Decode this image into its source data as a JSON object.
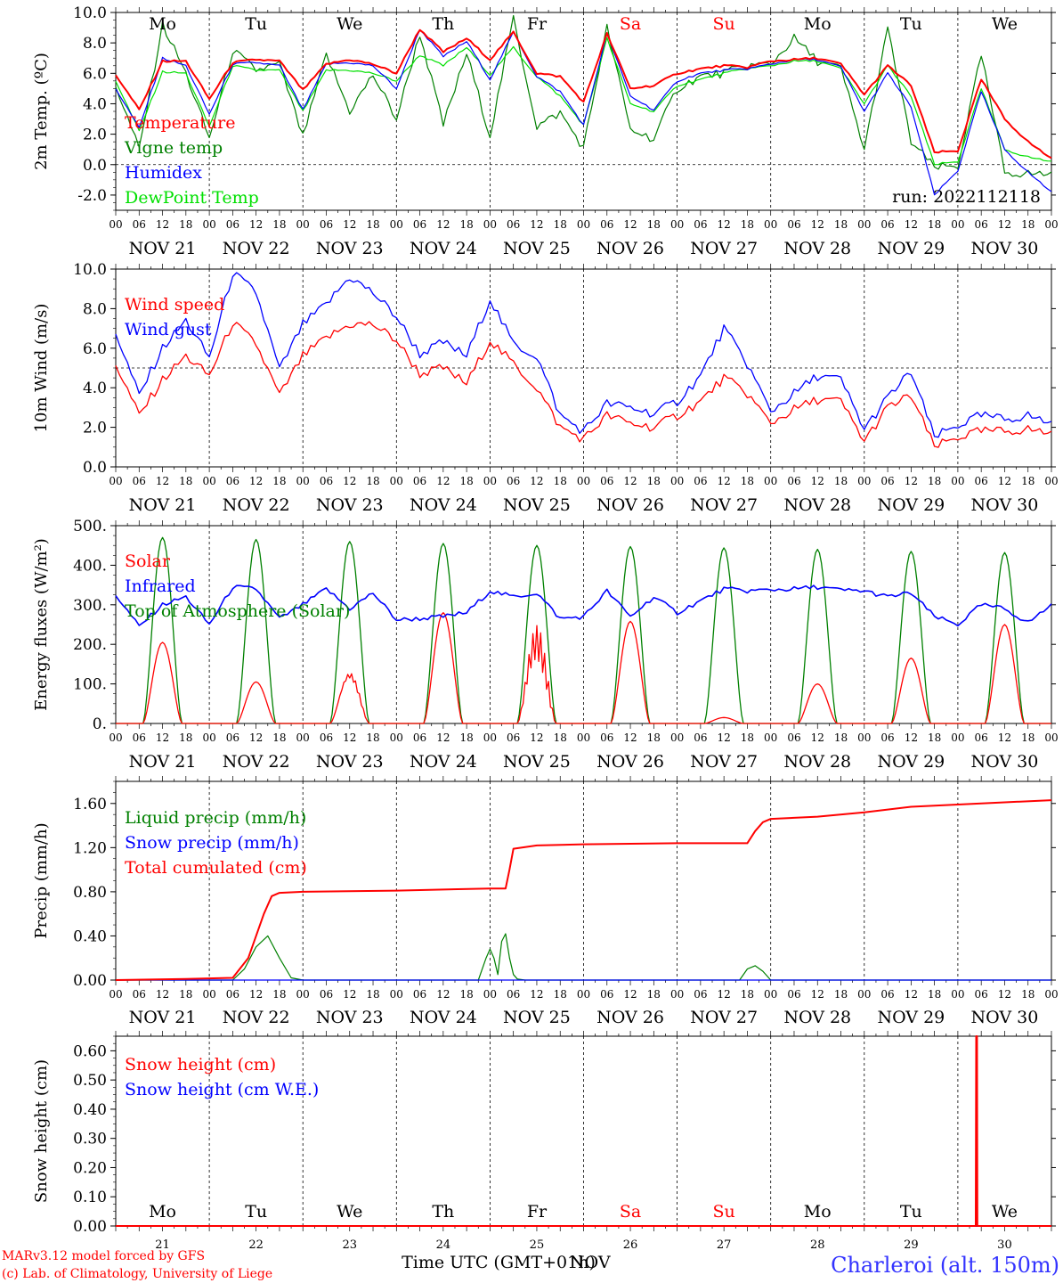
{
  "layout_note": "",
  "chart_data": [
    {
      "type": "line",
      "ylabel": "2m Temp. (ºC)",
      "ylim": [
        -3.0,
        10.0
      ],
      "yticks": [
        "-2.0",
        "0.0",
        "2.0",
        "4.0",
        "6.0",
        "8.0",
        "10.0"
      ],
      "ytick_values": [
        -2,
        0,
        2,
        4,
        6,
        8,
        10
      ],
      "ref_line": 0,
      "day_labels": [
        "Mo",
        "Tu",
        "We",
        "Th",
        "Fr",
        "Sa",
        "Su",
        "Mo",
        "Tu",
        "We"
      ],
      "date_labels": [
        "NOV 21",
        "NOV 22",
        "NOV 23",
        "NOV 24",
        "NOV 25",
        "NOV 26",
        "NOV 27",
        "NOV 28",
        "NOV 29",
        "NOV 30"
      ],
      "run_label": "run: 2022112118",
      "x_hours": [
        0,
        6,
        12,
        18,
        24,
        30,
        36,
        42,
        48,
        54,
        60,
        66,
        72,
        78,
        84,
        90,
        96,
        102,
        108,
        114,
        120,
        126,
        132,
        138,
        144,
        150,
        156,
        162,
        168,
        174,
        180,
        186,
        192,
        198,
        204,
        210,
        216,
        222,
        228,
        234,
        240
      ],
      "series": [
        {
          "name": "Temperature",
          "color": "#ff0000",
          "values": [
            5.9,
            3.6,
            6.8,
            6.8,
            4.3,
            6.7,
            6.9,
            6.8,
            4.9,
            6.6,
            6.9,
            6.6,
            6.0,
            8.9,
            7.4,
            8.3,
            6.9,
            8.7,
            6.0,
            5.8,
            4.1,
            8.6,
            5.0,
            5.2,
            6.0,
            6.3,
            6.5,
            6.4,
            6.8,
            6.9,
            7.0,
            6.6,
            4.6,
            6.5,
            5.2,
            0.8,
            0.9,
            5.6,
            3.0,
            1.5,
            0.4
          ]
        },
        {
          "name": "Vigne temp",
          "color": "#008000",
          "values": [
            5.2,
            1.0,
            9.2,
            6.0,
            1.7,
            7.5,
            6.2,
            6.6,
            1.8,
            7.2,
            3.5,
            5.9,
            3.0,
            8.6,
            2.6,
            7.3,
            1.9,
            9.6,
            2.5,
            3.4,
            1.1,
            9.0,
            2.3,
            1.7,
            5.0,
            5.8,
            6.0,
            6.5,
            6.6,
            8.3,
            6.8,
            6.3,
            1.0,
            8.9,
            1.5,
            -0.2,
            -0.1,
            7.2,
            -0.5,
            -0.6,
            -0.6
          ]
        },
        {
          "name": "Humidex",
          "color": "#0000ff",
          "values": [
            5.0,
            2.4,
            7.0,
            6.5,
            3.3,
            6.6,
            6.7,
            6.5,
            3.6,
            6.6,
            6.7,
            6.5,
            5.0,
            8.9,
            7.1,
            8.1,
            5.6,
            8.7,
            5.8,
            4.8,
            2.6,
            8.6,
            4.5,
            3.6,
            5.5,
            6.0,
            6.2,
            6.3,
            6.6,
            6.9,
            6.9,
            6.4,
            3.5,
            6.0,
            3.8,
            -2.0,
            -0.4,
            4.8,
            1.0,
            -0.5,
            -1.8
          ]
        },
        {
          "name": "DewPoint Temp",
          "color": "#00e000",
          "values": [
            5.5,
            2.2,
            6.1,
            6.0,
            2.5,
            6.5,
            6.2,
            6.2,
            3.5,
            6.2,
            6.2,
            6.0,
            5.5,
            7.2,
            6.5,
            7.7,
            5.9,
            7.7,
            5.8,
            4.5,
            2.6,
            8.3,
            4.0,
            3.5,
            5.2,
            5.6,
            6.0,
            6.3,
            6.5,
            6.8,
            6.8,
            6.3,
            4.0,
            6.5,
            4.5,
            0.0,
            0.2,
            5.0,
            1.0,
            0.5,
            0.2
          ]
        }
      ]
    },
    {
      "type": "line",
      "ylabel": "10m Wind (m/s)",
      "ylim": [
        0.0,
        10.0
      ],
      "yticks": [
        "0.0",
        "2.0",
        "4.0",
        "6.0",
        "8.0",
        "10.0"
      ],
      "ytick_values": [
        0,
        2,
        4,
        6,
        8,
        10
      ],
      "ref_line": 5,
      "day_labels": [],
      "date_labels": [
        "NOV 21",
        "NOV 22",
        "NOV 23",
        "NOV 24",
        "NOV 25",
        "NOV 26",
        "NOV 27",
        "NOV 28",
        "NOV 29",
        "NOV 30"
      ],
      "run_label": "",
      "x_hours": [
        0,
        6,
        12,
        18,
        24,
        30,
        36,
        42,
        48,
        54,
        60,
        66,
        72,
        78,
        84,
        90,
        96,
        102,
        108,
        114,
        120,
        126,
        132,
        138,
        144,
        150,
        156,
        162,
        168,
        174,
        180,
        186,
        192,
        198,
        204,
        210,
        216,
        222,
        228,
        234,
        240
      ],
      "series": [
        {
          "name": "Wind speed",
          "color": "#ff0000",
          "values": [
            5.2,
            2.6,
            4.4,
            5.6,
            4.6,
            7.3,
            6.2,
            3.6,
            5.6,
            6.5,
            7.2,
            7.2,
            6.4,
            4.7,
            5.0,
            4.2,
            6.4,
            5.2,
            4.0,
            2.0,
            1.4,
            2.6,
            2.2,
            2.0,
            2.6,
            3.3,
            4.5,
            3.7,
            2.2,
            2.9,
            3.4,
            3.3,
            1.3,
            3.0,
            3.6,
            1.0,
            1.5,
            1.8,
            1.8,
            1.9,
            1.7
          ]
        },
        {
          "name": "Wind gust",
          "color": "#0000ff",
          "values": [
            6.8,
            3.6,
            6.0,
            7.4,
            5.5,
            9.8,
            8.8,
            4.9,
            7.2,
            8.2,
            9.6,
            8.8,
            7.6,
            5.7,
            6.3,
            5.6,
            8.5,
            6.2,
            5.6,
            2.6,
            1.8,
            3.2,
            3.0,
            2.7,
            3.3,
            4.6,
            7.0,
            5.2,
            2.8,
            3.7,
            4.6,
            4.4,
            1.9,
            3.5,
            4.8,
            1.5,
            2.1,
            2.6,
            2.4,
            2.6,
            2.2
          ]
        }
      ]
    },
    {
      "type": "line",
      "ylabel": "Energy fluxes (W/m²)",
      "ylim": [
        0,
        500
      ],
      "yticks": [
        "0.",
        "100.",
        "200.",
        "300.",
        "400.",
        "500."
      ],
      "ytick_values": [
        0,
        100,
        200,
        300,
        400,
        500
      ],
      "day_labels": [],
      "date_labels": [
        "NOV 21",
        "NOV 22",
        "NOV 23",
        "NOV 24",
        "NOV 25",
        "NOV 26",
        "NOV 27",
        "NOV 28",
        "NOV 29",
        "NOV 30"
      ],
      "run_label": "",
      "diurnal_peaks": {
        "Solar": [
          205,
          105,
          140,
          280,
          250,
          258,
          15,
          100,
          165,
          250
        ],
        "Top of Atmosphere (Solar)": [
          470,
          465,
          460,
          455,
          450,
          447,
          444,
          440,
          435,
          432
        ]
      },
      "daylight_hours": [
        7,
        17
      ],
      "infrared": {
        "x_hours": [
          0,
          6,
          12,
          18,
          24,
          30,
          36,
          42,
          48,
          54,
          60,
          66,
          72,
          78,
          84,
          90,
          96,
          102,
          108,
          114,
          120,
          126,
          132,
          138,
          144,
          150,
          156,
          162,
          168,
          174,
          180,
          186,
          192,
          198,
          204,
          210,
          216,
          222,
          228,
          234,
          240
        ],
        "values": [
          325,
          245,
          300,
          320,
          250,
          345,
          340,
          265,
          300,
          340,
          290,
          330,
          262,
          265,
          270,
          280,
          335,
          320,
          330,
          265,
          270,
          335,
          270,
          320,
          280,
          310,
          340,
          335,
          338,
          340,
          345,
          337,
          335,
          320,
          330,
          270,
          250,
          300,
          290,
          255,
          300
        ]
      },
      "series_names": [
        "Solar",
        "Infrared",
        "Top of Atmosphere (Solar)"
      ],
      "colors": {
        "Solar": "#ff0000",
        "Infrared": "#0000ff",
        "Top of Atmosphere (Solar)": "#008000"
      }
    },
    {
      "type": "line",
      "ylabel": "Precip (mm/h)",
      "ylim": [
        0.0,
        1.8
      ],
      "yticks": [
        "0.00",
        "0.40",
        "0.80",
        "1.20",
        "1.60"
      ],
      "ytick_values": [
        0,
        0.4,
        0.8,
        1.2,
        1.6
      ],
      "day_labels": [],
      "date_labels": [
        "NOV 21",
        "NOV 22",
        "NOV 23",
        "NOV 24",
        "NOV 25",
        "NOV 26",
        "NOV 27",
        "NOV 28",
        "NOV 29",
        "NOV 30"
      ],
      "run_label": "",
      "series": [
        {
          "name": "Liquid precip (mm/h)",
          "color": "#008000",
          "x_hours": [
            0,
            30,
            33,
            36,
            39,
            42,
            45,
            48,
            93,
            95,
            96,
            97,
            98,
            99,
            100,
            101,
            102,
            103,
            105,
            160,
            162,
            164,
            166,
            168,
            240
          ],
          "values": [
            0,
            0,
            0.1,
            0.3,
            0.4,
            0.2,
            0.02,
            0,
            0,
            0.2,
            0.28,
            0.2,
            0.05,
            0.35,
            0.42,
            0.2,
            0.05,
            0.01,
            0,
            0,
            0.1,
            0.13,
            0.08,
            0,
            0
          ]
        },
        {
          "name": "Snow precip (mm/h)",
          "color": "#0000ff",
          "x_hours": [
            0,
            240
          ],
          "values": [
            0,
            0
          ]
        },
        {
          "name": "Total cumulated (cm)",
          "color": "#ff0000",
          "x_hours": [
            0,
            18,
            30,
            34,
            38,
            40,
            42,
            48,
            72,
            96,
            100,
            101,
            102,
            108,
            120,
            144,
            162,
            164,
            166,
            168,
            180,
            192,
            204,
            216,
            228,
            240
          ],
          "values": [
            0,
            0.01,
            0.02,
            0.2,
            0.6,
            0.76,
            0.79,
            0.8,
            0.81,
            0.83,
            0.83,
            1.0,
            1.19,
            1.22,
            1.23,
            1.24,
            1.24,
            1.35,
            1.43,
            1.46,
            1.48,
            1.52,
            1.57,
            1.59,
            1.61,
            1.63
          ]
        }
      ]
    },
    {
      "type": "line",
      "ylabel": "Snow height (cm)",
      "ylim": [
        0.0,
        0.65
      ],
      "yticks": [
        "0.00",
        "0.10",
        "0.20",
        "0.30",
        "0.40",
        "0.50",
        "0.60"
      ],
      "ytick_values": [
        0,
        0.1,
        0.2,
        0.3,
        0.4,
        0.5,
        0.6
      ],
      "day_labels": [
        "Mo",
        "Tu",
        "We",
        "Th",
        "Fr",
        "Sa",
        "Su",
        "Mo",
        "Tu",
        "We"
      ],
      "date_labels": [
        "21",
        "22",
        "23",
        "24",
        "25",
        "26",
        "27",
        "28",
        "29",
        "30"
      ],
      "run_label": "",
      "series": [
        {
          "name": "Snow height (cm)",
          "color": "#ff0000",
          "x_hours": [
            0,
            220.6,
            220.7,
            220.9,
            221.0,
            240
          ],
          "values": [
            0,
            0,
            0.65,
            0.65,
            0,
            0
          ]
        },
        {
          "name": "Snow height (cm W.E.)",
          "color": "#0000ff",
          "x_hours": [
            0,
            240
          ],
          "values": [
            0,
            0
          ]
        }
      ]
    }
  ],
  "xlabel": "Time UTC (GMT+01h)",
  "xlabel_overlay": "NOV",
  "hour_ticks": [
    "00",
    "06",
    "12",
    "18"
  ],
  "weekend_color": "#ff0000",
  "weekday_color": "#000000",
  "footer": {
    "model": "MARv3.12 model forced by GFS",
    "copyright": "(c) Lab. of Climatology, University of Liege",
    "station": "Charleroi (alt. 150m)"
  }
}
